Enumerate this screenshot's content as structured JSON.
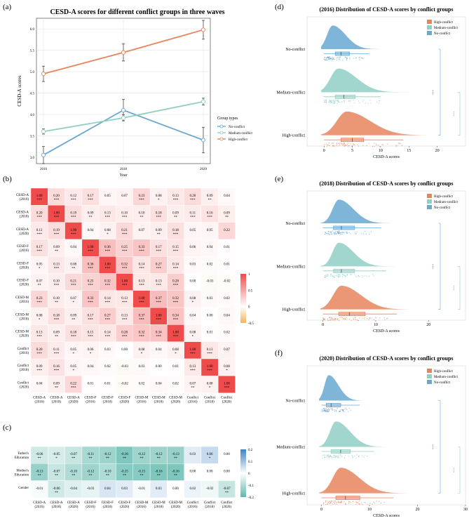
{
  "panel_letters": [
    "(a)",
    "(b)",
    "(c)",
    "(d)",
    "(e)",
    "(f)"
  ],
  "colors": {
    "high": "#e8845c",
    "medium": "#8fcfc4",
    "no": "#6aa8d4",
    "heat_high": "#ef4b4b",
    "heat_zero": "#ffffff",
    "heat_low": "#f6b35a",
    "heat2_pos": "#3d83c4",
    "heat2_neg": "#5fb8ac"
  },
  "chart_data": [
    {
      "type": "line",
      "panel": "(a)",
      "title": "CESD-A scores for different conflict groups in three waves",
      "xlabel": "Year",
      "ylabel": "CESD-A scores",
      "x": [
        2016,
        2018,
        2020
      ],
      "ylim": [
        2.85,
        6.25
      ],
      "yticks": [
        "3.0",
        "3.5",
        "4.0",
        "4.5",
        "5.0",
        "5.5",
        "6.0"
      ],
      "ytick_values": [
        3.0,
        3.5,
        4.0,
        4.5,
        5.0,
        5.5,
        6.0
      ],
      "legend_title": "Group types",
      "legend_position": "right",
      "grid": true,
      "series": [
        {
          "name": "No-conflict",
          "key": "no",
          "values": [
            3.05,
            4.1,
            3.4
          ],
          "err": [
            0.2,
            0.25,
            0.3
          ]
        },
        {
          "name": "Medium-conflict",
          "key": "medium",
          "values": [
            3.6,
            3.92,
            4.3
          ],
          "err": [
            0.06,
            0.07,
            0.08
          ]
        },
        {
          "name": "High-conflict",
          "key": "high",
          "values": [
            4.95,
            5.45,
            5.98
          ],
          "err": [
            0.18,
            0.2,
            0.22
          ]
        }
      ]
    },
    {
      "type": "heatmap",
      "panel": "(b)",
      "row_labels": [
        [
          "CESD-A",
          "(2016)"
        ],
        [
          "CESD-A",
          "(2018)"
        ],
        [
          "CESD-A",
          "(2020)"
        ],
        [
          "CESD-F",
          "(2016)"
        ],
        [
          "CESD-F",
          "(2018)"
        ],
        [
          "CESD-F",
          "(2020)"
        ],
        [
          "CESD-M",
          "(2016)"
        ],
        [
          "CESD-M",
          "(2018)"
        ],
        [
          "CESD-M",
          "(2020)"
        ],
        [
          "Conflict",
          "(2016)"
        ],
        [
          "Conflict",
          "(2018)"
        ],
        [
          "Conflict",
          "(2020)"
        ]
      ],
      "col_labels": [
        [
          "CESD-A",
          "(2016)"
        ],
        [
          "CESD-A",
          "(2018)"
        ],
        [
          "CESD-A",
          "(2020)"
        ],
        [
          "CESD-F",
          "(2016)"
        ],
        [
          "CESD-F",
          "(2018)"
        ],
        [
          "CESD-F",
          "(2020)"
        ],
        [
          "CESD-M",
          "(2016)"
        ],
        [
          "CESD-M",
          "(2018)"
        ],
        [
          "CESD-M",
          "(2020)"
        ],
        [
          "Conflict",
          "(2016)"
        ],
        [
          "Conflict",
          "(2018)"
        ],
        [
          "Conflict",
          "(2020)"
        ]
      ],
      "values": [
        [
          1.0,
          0.2,
          0.12,
          0.17,
          0.05,
          0.07,
          0.23,
          0.08,
          0.13,
          0.2,
          0.09,
          0.04
        ],
        [
          0.2,
          1.0,
          0.19,
          0.09,
          0.13,
          0.1,
          0.1,
          0.18,
          0.09,
          0.11,
          0.16,
          0.09
        ],
        [
          0.12,
          0.19,
          1.0,
          0.04,
          0.08,
          0.21,
          0.07,
          0.09,
          0.18,
          0.05,
          0.05,
          0.22
        ],
        [
          0.17,
          0.09,
          0.04,
          1.0,
          0.36,
          0.25,
          0.33,
          0.17,
          0.15,
          0.06,
          0.04,
          0.01
        ],
        [
          0.05,
          0.13,
          0.08,
          0.36,
          1.0,
          0.32,
          0.14,
          0.27,
          0.14,
          0.03,
          0.02,
          0.01
        ],
        [
          0.07,
          0.1,
          0.21,
          0.25,
          0.32,
          1.0,
          0.13,
          0.13,
          0.28,
          0.0,
          -0.03,
          -0.02
        ],
        [
          0.23,
          0.1,
          0.07,
          0.33,
          0.14,
          0.13,
          1.0,
          0.37,
          0.32,
          0.08,
          0.03,
          0.02
        ],
        [
          0.08,
          0.18,
          0.09,
          0.17,
          0.27,
          0.13,
          0.37,
          1.0,
          0.34,
          0.04,
          -0.0,
          0.04
        ],
        [
          0.13,
          0.09,
          0.18,
          0.15,
          0.14,
          0.28,
          0.32,
          0.34,
          1.0,
          0.08,
          0.01,
          0.02
        ],
        [
          0.2,
          0.11,
          0.05,
          0.06,
          0.03,
          0.0,
          0.08,
          0.04,
          0.08,
          1.0,
          0.13,
          0.07
        ],
        [
          0.09,
          0.16,
          0.05,
          0.04,
          0.02,
          -0.03,
          0.03,
          -0.0,
          0.01,
          0.13,
          1.0,
          0.08
        ],
        [
          0.04,
          0.09,
          0.22,
          0.01,
          0.01,
          -0.02,
          0.02,
          0.04,
          0.02,
          0.07,
          0.08,
          1.0
        ]
      ],
      "stars": [
        [
          "***",
          "***",
          "***",
          "***",
          "",
          "",
          "***",
          "*",
          "***",
          "***",
          "**",
          ""
        ],
        [
          "***",
          "***",
          "***",
          "**",
          "***",
          "***",
          "**",
          "***",
          "**",
          "***",
          "***",
          "**"
        ],
        [
          "***",
          "***",
          "***",
          "",
          "*",
          "***",
          "",
          "**",
          "***",
          "",
          "",
          ""
        ],
        [
          "***",
          "**",
          "",
          "***",
          "***",
          "***",
          "***",
          "***",
          "***",
          "",
          "",
          ""
        ],
        [
          "*",
          "***",
          "**",
          "***",
          "***",
          "***",
          "***",
          "***",
          "***",
          "",
          "",
          ""
        ],
        [
          "**",
          "***",
          "***",
          "***",
          "***",
          "***",
          "***",
          "***",
          "***",
          "",
          "",
          ""
        ],
        [
          "***",
          "**",
          "*",
          "***",
          "***",
          "***",
          "***",
          "***",
          "***",
          "*",
          "",
          ""
        ],
        [
          "*",
          "***",
          "**",
          "***",
          "***",
          "***",
          "***",
          "***",
          "***",
          "",
          "",
          ""
        ],
        [
          "***",
          "**",
          "***",
          "***",
          "***",
          "***",
          "***",
          "***",
          "***",
          "*",
          "",
          ""
        ],
        [
          "***",
          "***",
          "*",
          "*",
          "",
          "",
          "*",
          "",
          "*",
          "***",
          "***",
          ""
        ],
        [
          "***",
          "***",
          "*",
          "",
          "",
          "",
          "",
          "",
          "",
          "***",
          "***",
          "*"
        ],
        [
          "",
          "**",
          "***",
          "",
          "",
          "",
          "",
          "",
          "",
          "**",
          "*",
          "***"
        ]
      ],
      "legend_ticks": [
        "1",
        "0.5",
        "0",
        "-0.5"
      ],
      "legend_tick_values": [
        1,
        0.5,
        0,
        -0.5
      ]
    },
    {
      "type": "heatmap",
      "panel": "(c)",
      "row_labels": [
        [
          "Father's",
          "Education"
        ],
        [
          "Mother's",
          "Education"
        ],
        [
          "Gender"
        ]
      ],
      "col_labels": [
        [
          "CESD-A",
          "(2016)"
        ],
        [
          "CESD-A",
          "(2018)"
        ],
        [
          "CESD-A",
          "(2020)"
        ],
        [
          "CESD-F",
          "(2016)"
        ],
        [
          "CESD-F",
          "(2018)"
        ],
        [
          "CESD-F",
          "(2020)"
        ],
        [
          "CESD-M",
          "(2016)"
        ],
        [
          "CESD-M",
          "(2018)"
        ],
        [
          "CESD-M",
          "(2020)"
        ],
        [
          "Conflict",
          "(2016)"
        ],
        [
          "Conflict",
          "(2018)"
        ],
        [
          "Conflict",
          "(2020)"
        ]
      ],
      "values": [
        [
          -0.06,
          -0.05,
          -0.07,
          -0.11,
          -0.12,
          -0.16,
          -0.12,
          -0.12,
          -0.13,
          0.03,
          0.06,
          -0.0
        ],
        [
          -0.13,
          -0.07,
          -0.1,
          -0.12,
          -0.1,
          -0.15,
          -0.15,
          -0.16,
          -0.16,
          -0.0,
          0.0,
          -0.0
        ],
        [
          -0.01,
          -0.06,
          -0.04,
          -0.03,
          0.04,
          0.03,
          -0.01,
          0.03,
          0.0,
          0.02,
          -0.02,
          -0.07
        ]
      ],
      "stars": [
        [
          "**",
          "*",
          "**",
          "**",
          "**",
          "**",
          "**",
          "**",
          "**",
          "",
          "*",
          ""
        ],
        [
          "**",
          "**",
          "**",
          "**",
          "**",
          "**",
          "**",
          "**",
          "**",
          "",
          "",
          ""
        ],
        [
          "",
          "**",
          "",
          "",
          "",
          "",
          "",
          "",
          "",
          "",
          "",
          "**"
        ]
      ],
      "legend_ticks": [
        "0.2",
        "0.1",
        "0",
        "-0.1",
        "-0.2"
      ],
      "legend_tick_values": [
        0.2,
        0.1,
        0,
        -0.1,
        -0.2
      ]
    },
    {
      "type": "raincloud",
      "panel": "(d)",
      "title": "(2016) Distribution of CESD-A scores by conflict groups",
      "xlabel": "CESD-A scores",
      "xlim": [
        -3,
        25
      ],
      "xticks": [
        "0",
        "5",
        "10",
        "15",
        "20"
      ],
      "xtick_values": [
        0,
        5,
        10,
        15,
        20
      ],
      "categories": [
        "No-conflict",
        "Medium-conflict",
        "High-conflict"
      ],
      "legend": [
        "High-conflict",
        "Medium-conflict",
        "No-conflict"
      ],
      "significance": [
        "***",
        "***"
      ],
      "groups": [
        {
          "key": "no",
          "q1": 2.0,
          "median": 3.0,
          "q3": 4.5,
          "wmin": 0,
          "wmax": 8,
          "max": 12,
          "peak": 1.5,
          "spread": 2.5
        },
        {
          "key": "medium",
          "q1": 2.0,
          "median": 3.5,
          "q3": 5.5,
          "wmin": 0,
          "wmax": 10,
          "max": 17,
          "peak": 2.5,
          "spread": 3.5
        },
        {
          "key": "high",
          "q1": 3.0,
          "median": 5.0,
          "q3": 7.0,
          "wmin": 0,
          "wmax": 14,
          "max": 22,
          "peak": 4.0,
          "spread": 4.5
        }
      ]
    },
    {
      "type": "raincloud",
      "panel": "(e)",
      "title": "(2018) Distribution of CESD-A scores by conflict groups",
      "xlabel": "CESD-A scores",
      "xlim": [
        -3,
        27
      ],
      "xticks": [
        "0",
        "10",
        "20"
      ],
      "xtick_values": [
        0,
        10,
        20
      ],
      "categories": [
        "No-conflict",
        "Medium-conflict",
        "High-conflict"
      ],
      "legend": [
        "High-conflict",
        "Medium-conflict",
        "No-conflict"
      ],
      "significance": [
        "***",
        "***"
      ],
      "groups": [
        {
          "key": "no",
          "q1": 2.0,
          "median": 3.5,
          "q3": 6.0,
          "wmin": 0,
          "wmax": 11,
          "max": 18,
          "peak": 3.0,
          "spread": 3.0
        },
        {
          "key": "medium",
          "q1": 2.0,
          "median": 3.5,
          "q3": 6.0,
          "wmin": 0,
          "wmax": 12,
          "max": 19,
          "peak": 3.0,
          "spread": 3.0
        },
        {
          "key": "high",
          "q1": 3.0,
          "median": 5.0,
          "q3": 8.0,
          "wmin": 0,
          "wmax": 14,
          "max": 24,
          "peak": 3.5,
          "spread": 4.0
        }
      ]
    },
    {
      "type": "raincloud",
      "panel": "(f)",
      "title": "(2020) Distribution of CESD-A scores by conflict groups",
      "xlabel": "CESD-A scores",
      "xlim": [
        -3,
        30
      ],
      "xticks": [
        "0",
        "10",
        "20",
        "30"
      ],
      "xtick_values": [
        0,
        10,
        20,
        30
      ],
      "categories": [
        "No-conflict",
        "Medium-conflict",
        "High-conflict"
      ],
      "legend": [
        "High-conflict",
        "Medium-conflict",
        "No-conflict"
      ],
      "significance": [
        "***",
        "***"
      ],
      "groups": [
        {
          "key": "no",
          "q1": 1.0,
          "median": 2.0,
          "q3": 4.0,
          "wmin": 0,
          "wmax": 8,
          "max": 14,
          "peak": 1.5,
          "spread": 2.2
        },
        {
          "key": "medium",
          "q1": 2.0,
          "median": 4.0,
          "q3": 6.0,
          "wmin": 0,
          "wmax": 11,
          "max": 18,
          "peak": 3.0,
          "spread": 3.2
        },
        {
          "key": "high",
          "q1": 3.0,
          "median": 5.0,
          "q3": 8.0,
          "wmin": 0,
          "wmax": 15,
          "max": 25,
          "peak": 4.0,
          "spread": 4.2
        }
      ]
    }
  ]
}
